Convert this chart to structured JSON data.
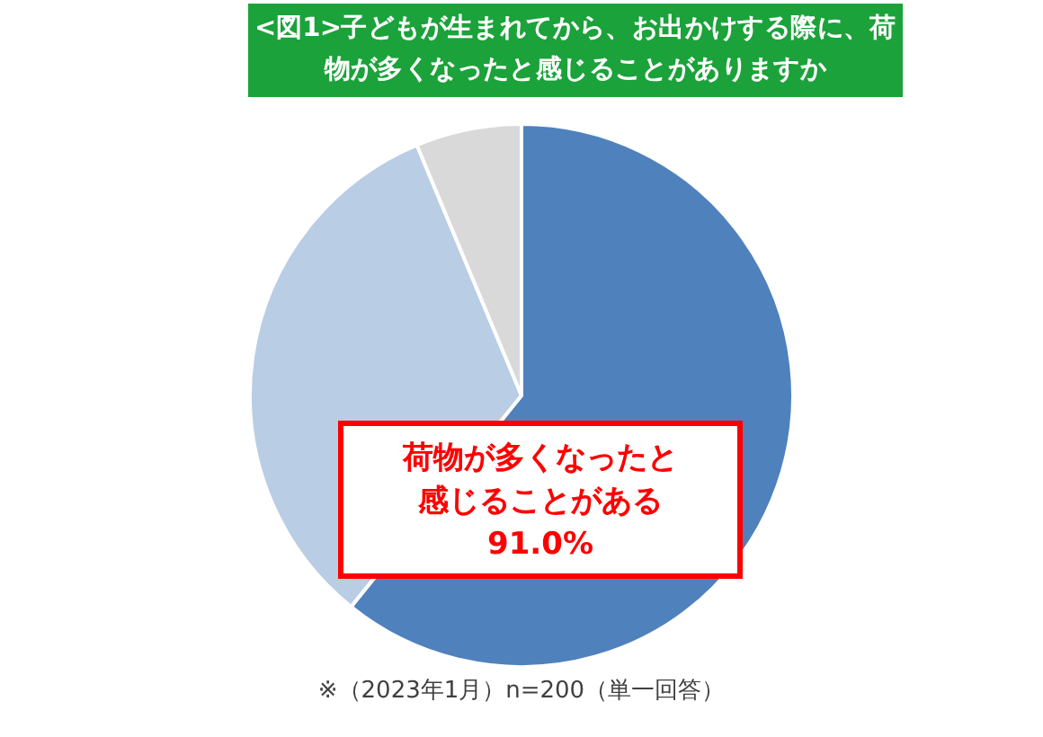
{
  "chart_data": {
    "type": "pie",
    "title": "<図1>子どもが生まれてから、お出かけする際に、荷物が多くなったと感じることがありますか",
    "categories": [
      null,
      null,
      null
    ],
    "values": [
      60.8,
      32.9,
      6.3
    ],
    "colors": [
      "#4f81bd",
      "#b9cde5",
      "#d9d9d9"
    ],
    "annotations": [
      "荷物が多くなったと感じることがある91.0%",
      "※（2023年1月）n=200（単一回答）"
    ]
  }
}
